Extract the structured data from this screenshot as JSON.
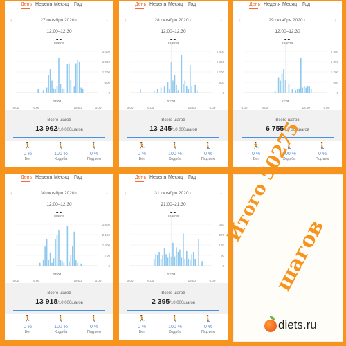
{
  "tabs": [
    "День",
    "Неделя",
    "Месяц",
    "Год"
  ],
  "panels": [
    {
      "date": "27 октября 2020 г.",
      "time": "12:00–12:30",
      "dash": "--",
      "unit": "шагов",
      "total_label": "Всего шагов",
      "total": "13 962",
      "goal": "/10 000шагов",
      "activities": [
        {
          "icon": "run-icon",
          "pct": "0 %",
          "label": "Бег"
        },
        {
          "icon": "walk-icon",
          "pct": "100 %",
          "label": "Ходьба"
        },
        {
          "icon": "stairs-icon",
          "pct": "0 %",
          "label": "Подъем"
        }
      ]
    },
    {
      "date": "28 октября 2020 г.",
      "time": "12:00–12:30",
      "dash": "--",
      "unit": "шагов",
      "total_label": "Всего шагов",
      "total": "13 245",
      "goal": "/10 000шагов",
      "activities": [
        {
          "icon": "run-icon",
          "pct": "0 %",
          "label": "Бег"
        },
        {
          "icon": "walk-icon",
          "pct": "100 %",
          "label": "Ходьба"
        },
        {
          "icon": "stairs-icon",
          "pct": "0 %",
          "label": "Подъем"
        }
      ]
    },
    {
      "date": "29 октября 2020 г.",
      "time": "12:00–12:30",
      "dash": "--",
      "unit": "шагов",
      "total_label": "Всего шагов",
      "total": "6 755",
      "goal": "/10 000шагов",
      "activities": [
        {
          "icon": "run-icon",
          "pct": "0 %",
          "label": "Бег"
        },
        {
          "icon": "walk-icon",
          "pct": "100 %",
          "label": "Ходьба"
        },
        {
          "icon": "stairs-icon",
          "pct": "0 %",
          "label": "Подъем"
        }
      ]
    },
    {
      "date": "30 октября 2020 г.",
      "time": "12:00–12:30",
      "dash": "--",
      "unit": "шагов",
      "total_label": "Всего шагов",
      "total": "13 918",
      "goal": "/10 000шагов",
      "activities": [
        {
          "icon": "run-icon",
          "pct": "0 %",
          "label": "Бег"
        },
        {
          "icon": "walk-icon",
          "pct": "100 %",
          "label": "Ходьба"
        },
        {
          "icon": "stairs-icon",
          "pct": "0 %",
          "label": "Подъем"
        }
      ]
    },
    {
      "date": "31 октября 2020 г.",
      "time": "21:00–21:30",
      "dash": "--",
      "unit": "шагов",
      "total_label": "Всего шагов",
      "total": "2 395",
      "goal": "/10 000шагов",
      "activities": [
        {
          "icon": "run-icon",
          "pct": "0 %",
          "label": "Бег"
        },
        {
          "icon": "walk-icon",
          "pct": "100 %",
          "label": "Ходьба"
        },
        {
          "icon": "stairs-icon",
          "pct": "0 %",
          "label": "Подъем"
        }
      ]
    }
  ],
  "chart_data": [
    {
      "type": "bar",
      "x_ticks": [
        "0:00",
        "6:00",
        "12:00",
        "18:00",
        "0:00"
      ],
      "y_ticks": [
        "2 400",
        "1 800",
        "1 200",
        "600",
        "0"
      ],
      "ylim": [
        0,
        2400
      ],
      "x": [
        6.5,
        8,
        9,
        9.5,
        10,
        10.5,
        11,
        11.5,
        12,
        12.5,
        13,
        13.5,
        14,
        15,
        15.5,
        16,
        17,
        17.5,
        18,
        18.5,
        19,
        19.5
      ],
      "values": [
        200,
        150,
        300,
        1000,
        1400,
        700,
        250,
        200,
        400,
        2000,
        500,
        250,
        250,
        1650,
        1700,
        750,
        350,
        1700,
        1900,
        1800,
        300,
        200
      ]
    },
    {
      "type": "bar",
      "x_ticks": [
        "0:00",
        "6:00",
        "12:00",
        "18:00",
        "0:00"
      ],
      "y_ticks": [
        "2 400",
        "1 800",
        "1 200",
        "600",
        "0"
      ],
      "ylim": [
        0,
        2400
      ],
      "x": [
        3,
        7,
        8,
        9,
        10,
        11,
        11.5,
        12,
        12.5,
        13,
        13.5,
        14,
        15,
        15.5,
        16,
        16.5,
        17,
        17.5,
        18,
        19,
        19.5
      ],
      "values": [
        200,
        100,
        200,
        300,
        350,
        600,
        200,
        1800,
        700,
        1000,
        450,
        150,
        2200,
        500,
        700,
        400,
        200,
        1600,
        350,
        450,
        150
      ]
    },
    {
      "type": "bar",
      "x_ticks": [
        "0:00",
        "6:00",
        "12:00",
        "18:00",
        "0:00"
      ],
      "y_ticks": [
        "2 400",
        "1 800",
        "1 200",
        "600",
        "0"
      ],
      "ylim": [
        0,
        2400
      ],
      "x": [
        9,
        10,
        10.5,
        11,
        11.5,
        12,
        13,
        14,
        15,
        15.5,
        16,
        16.5,
        17,
        17.5,
        18,
        18.5,
        19,
        19.5
      ],
      "values": [
        100,
        900,
        700,
        1100,
        1400,
        750,
        500,
        200,
        150,
        200,
        250,
        2000,
        300,
        400,
        300,
        400,
        350,
        200
      ]
    },
    {
      "type": "bar",
      "x_ticks": [
        "0:00",
        "6:00",
        "12:00",
        "18:00",
        "0:00"
      ],
      "y_ticks": [
        "2 800",
        "2 100",
        "1 400",
        "700",
        "0"
      ],
      "ylim": [
        0,
        2800
      ],
      "x": [
        7,
        8,
        8.5,
        9,
        9.5,
        10,
        10.5,
        11,
        11.5,
        12,
        12.5,
        13,
        13.5,
        14,
        15,
        15.5,
        16,
        16.5,
        17,
        17.5,
        18,
        19
      ],
      "values": [
        200,
        400,
        1300,
        1800,
        400,
        900,
        200,
        500,
        1800,
        2100,
        2400,
        400,
        300,
        200,
        2700,
        300,
        700,
        1300,
        2300,
        400,
        200,
        150
      ]
    },
    {
      "type": "bar",
      "x_ticks": [
        "0:00",
        "6:00",
        "12:00",
        "18:00",
        "0:00"
      ],
      "y_ticks": [
        "360",
        "270",
        "180",
        "90",
        "0"
      ],
      "ylim": [
        0,
        360
      ],
      "x": [
        7,
        7.5,
        8,
        8.5,
        9,
        9.5,
        10,
        10.5,
        11,
        11.5,
        12,
        12.5,
        13,
        13.5,
        14,
        14.5,
        15,
        15.5,
        16,
        16.5,
        17,
        17.5,
        18,
        18.5,
        19,
        20,
        21
      ],
      "values": [
        60,
        100,
        90,
        120,
        60,
        90,
        150,
        100,
        70,
        110,
        80,
        200,
        80,
        160,
        120,
        140,
        70,
        280,
        60,
        130,
        60,
        50,
        100,
        120,
        60,
        230,
        40
      ]
    }
  ],
  "caption": {
    "line1": "Итого 50275",
    "line2": "шагов"
  },
  "brand": {
    "name": "diets.ru",
    "icon": "apple-icon"
  }
}
